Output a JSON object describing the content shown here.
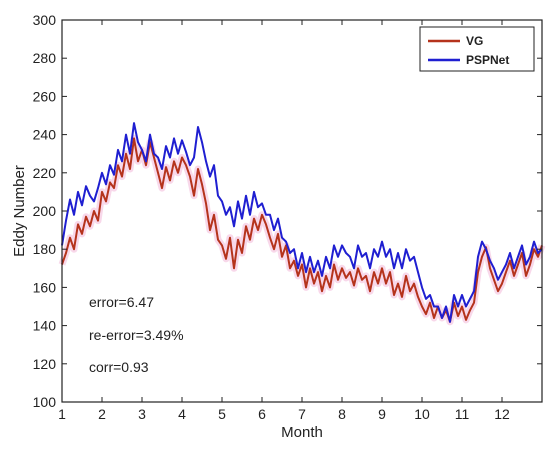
{
  "chart_data": {
    "type": "line",
    "xlabel": "Month",
    "ylabel": "Eddy Number",
    "xlim": [
      1,
      13
    ],
    "ylim": [
      100,
      300
    ],
    "x_ticks": [
      1,
      2,
      3,
      4,
      5,
      6,
      7,
      8,
      9,
      10,
      11,
      12
    ],
    "y_ticks": [
      100,
      120,
      140,
      160,
      180,
      200,
      220,
      240,
      260,
      280,
      300
    ],
    "grid": false,
    "legend_position": "top-right",
    "annotations": [
      "error=6.47",
      "re-error=3.49%",
      "corr=0.93"
    ],
    "series": [
      {
        "name": "VG",
        "color": "#b5331c",
        "x": [
          1.0,
          1.1,
          1.2,
          1.3,
          1.4,
          1.5,
          1.6,
          1.7,
          1.8,
          1.9,
          2.0,
          2.1,
          2.2,
          2.3,
          2.4,
          2.5,
          2.6,
          2.7,
          2.8,
          2.9,
          3.0,
          3.1,
          3.2,
          3.3,
          3.4,
          3.5,
          3.6,
          3.7,
          3.8,
          3.9,
          4.0,
          4.1,
          4.2,
          4.3,
          4.4,
          4.5,
          4.6,
          4.7,
          4.8,
          4.9,
          5.0,
          5.1,
          5.2,
          5.3,
          5.4,
          5.5,
          5.6,
          5.7,
          5.8,
          5.9,
          6.0,
          6.1,
          6.2,
          6.3,
          6.4,
          6.5,
          6.6,
          6.7,
          6.8,
          6.9,
          7.0,
          7.1,
          7.2,
          7.3,
          7.4,
          7.5,
          7.6,
          7.7,
          7.8,
          7.9,
          8.0,
          8.1,
          8.2,
          8.3,
          8.4,
          8.5,
          8.6,
          8.7,
          8.8,
          8.9,
          9.0,
          9.1,
          9.2,
          9.3,
          9.4,
          9.5,
          9.6,
          9.7,
          9.8,
          9.9,
          10.0,
          10.1,
          10.2,
          10.3,
          10.4,
          10.5,
          10.6,
          10.7,
          10.8,
          10.9,
          11.0,
          11.1,
          11.2,
          11.3,
          11.4,
          11.5,
          11.6,
          11.7,
          11.8,
          11.9,
          12.0,
          12.1,
          12.2,
          12.3,
          12.4,
          12.5,
          12.6,
          12.7,
          12.8,
          12.9,
          13.0
        ],
        "y": [
          172,
          178,
          186,
          180,
          193,
          188,
          197,
          192,
          200,
          195,
          210,
          205,
          215,
          212,
          224,
          218,
          230,
          222,
          238,
          226,
          232,
          224,
          236,
          228,
          220,
          212,
          223,
          216,
          226,
          220,
          228,
          224,
          218,
          208,
          222,
          214,
          204,
          190,
          198,
          185,
          182,
          175,
          186,
          170,
          185,
          178,
          192,
          185,
          196,
          190,
          198,
          193,
          186,
          180,
          188,
          176,
          182,
          170,
          174,
          166,
          172,
          160,
          170,
          162,
          168,
          158,
          166,
          160,
          172,
          164,
          170,
          165,
          168,
          161,
          170,
          164,
          166,
          158,
          168,
          162,
          170,
          162,
          168,
          156,
          162,
          155,
          166,
          158,
          162,
          155,
          150,
          146,
          152,
          144,
          150,
          144,
          148,
          142,
          152,
          145,
          150,
          143,
          148,
          152,
          168,
          176,
          181,
          170,
          164,
          158,
          162,
          168,
          174,
          166,
          172,
          178,
          166,
          172,
          180,
          176,
          182
        ]
      },
      {
        "name": "PSPNet",
        "color": "#1f1fd1",
        "x": [
          1.0,
          1.1,
          1.2,
          1.3,
          1.4,
          1.5,
          1.6,
          1.7,
          1.8,
          1.9,
          2.0,
          2.1,
          2.2,
          2.3,
          2.4,
          2.5,
          2.6,
          2.7,
          2.8,
          2.9,
          3.0,
          3.1,
          3.2,
          3.3,
          3.4,
          3.5,
          3.6,
          3.7,
          3.8,
          3.9,
          4.0,
          4.1,
          4.2,
          4.3,
          4.4,
          4.5,
          4.6,
          4.7,
          4.8,
          4.9,
          5.0,
          5.1,
          5.2,
          5.3,
          5.4,
          5.5,
          5.6,
          5.7,
          5.8,
          5.9,
          6.0,
          6.1,
          6.2,
          6.3,
          6.4,
          6.5,
          6.6,
          6.7,
          6.8,
          6.9,
          7.0,
          7.1,
          7.2,
          7.3,
          7.4,
          7.5,
          7.6,
          7.7,
          7.8,
          7.9,
          8.0,
          8.1,
          8.2,
          8.3,
          8.4,
          8.5,
          8.6,
          8.7,
          8.8,
          8.9,
          9.0,
          9.1,
          9.2,
          9.3,
          9.4,
          9.5,
          9.6,
          9.7,
          9.8,
          9.9,
          10.0,
          10.1,
          10.2,
          10.3,
          10.4,
          10.5,
          10.6,
          10.7,
          10.8,
          10.9,
          11.0,
          11.1,
          11.2,
          11.3,
          11.4,
          11.5,
          11.6,
          11.7,
          11.8,
          11.9,
          12.0,
          12.1,
          12.2,
          12.3,
          12.4,
          12.5,
          12.6,
          12.7,
          12.8,
          12.9,
          13.0
        ],
        "y": [
          182,
          195,
          206,
          198,
          210,
          203,
          213,
          208,
          205,
          212,
          220,
          214,
          224,
          219,
          232,
          226,
          240,
          230,
          246,
          236,
          232,
          226,
          240,
          230,
          228,
          222,
          234,
          228,
          238,
          230,
          237,
          231,
          224,
          228,
          244,
          236,
          226,
          218,
          224,
          208,
          205,
          198,
          202,
          192,
          205,
          196,
          208,
          198,
          210,
          202,
          204,
          198,
          198,
          190,
          196,
          186,
          184,
          178,
          180,
          170,
          178,
          168,
          176,
          168,
          174,
          166,
          176,
          170,
          182,
          176,
          182,
          178,
          176,
          170,
          182,
          176,
          178,
          170,
          180,
          176,
          184,
          176,
          180,
          170,
          178,
          170,
          180,
          174,
          176,
          168,
          160,
          154,
          156,
          150,
          150,
          144,
          150,
          142,
          156,
          150,
          156,
          150,
          154,
          158,
          176,
          184,
          180,
          174,
          170,
          164,
          168,
          172,
          178,
          170,
          176,
          182,
          172,
          176,
          184,
          178,
          180
        ]
      }
    ]
  }
}
